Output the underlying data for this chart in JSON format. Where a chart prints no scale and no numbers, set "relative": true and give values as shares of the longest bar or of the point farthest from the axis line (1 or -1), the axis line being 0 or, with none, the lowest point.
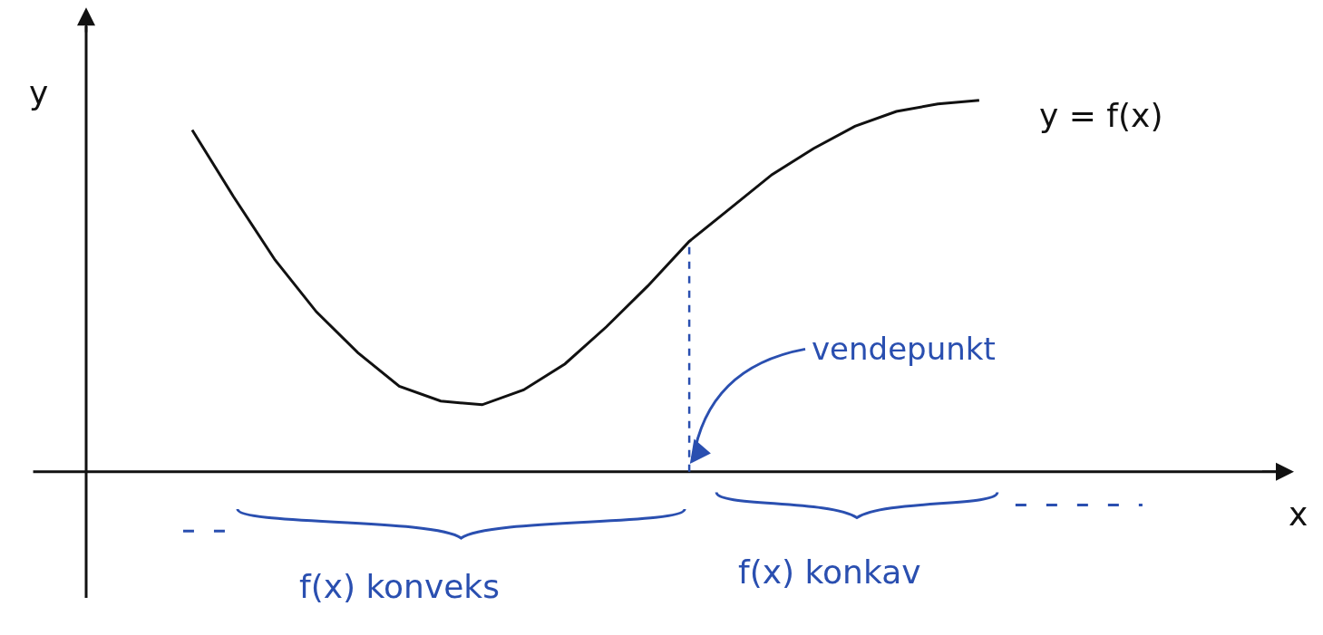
{
  "chart_data": {
    "type": "line",
    "relative": true,
    "ylabel": "y",
    "categories": [
      null,
      null,
      null,
      null,
      null,
      null,
      null,
      null,
      null,
      null,
      null,
      null,
      null,
      null,
      null,
      null,
      null,
      null,
      null,
      null
    ],
    "series": [
      {
        "name": "y = f(x)",
        "color": "#111111",
        "values": [
          0.92,
          0.74,
          0.57,
          0.43,
          0.32,
          0.23,
          0.19,
          0.18,
          0.22,
          0.29,
          0.39,
          0.5,
          0.62,
          0.71,
          0.8,
          0.87,
          0.93,
          0.97,
          0.99,
          1.0
        ]
      }
    ],
    "annotations": [
      "vendepunkt",
      "f(x) konveks",
      "f(x) konkav",
      "x"
    ],
    "legend": false,
    "marker": "none",
    "line_style": "solid"
  }
}
